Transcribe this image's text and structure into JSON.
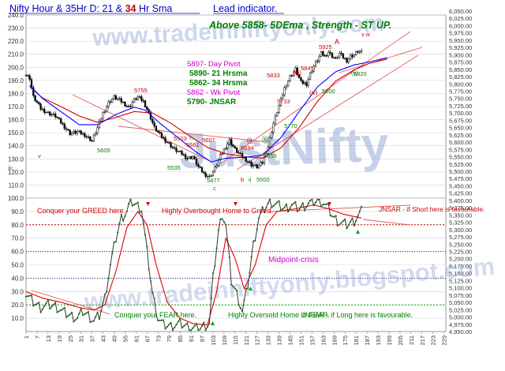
{
  "header": {
    "title_part1": "Nifty Hour & 35Hr D: 21 & ",
    "title_part2": "34",
    "title_part3": " Hr Sma",
    "lead": "Lead indicator.",
    "headline": "Above  5858-  5DEma ,  Strength - ST  UP."
  },
  "watermarks": {
    "url_top": "www.tradeinniftyonly.com",
    "brand": "JustNifty",
    "url_bottom": "www.tradeinniftyonly.blogspot.com"
  },
  "levels": {
    "day_pivot": "5897- Day Pivot",
    "hr21": "5890- 21 Hrsma",
    "hr34": "5862- 34 Hrsma",
    "wk_pivot": "5862 - Wk Pivot",
    "jnsar": "5790- JNSAR"
  },
  "colors": {
    "title": "#0000cc",
    "accent_red": "#cc0000",
    "headline": "#008000",
    "pivot": "#cc00cc",
    "price": "#000000",
    "ma21": "#0000ff",
    "ma34": "#d40000",
    "osc": "#2c2c2c",
    "signal": "#e00000",
    "watermark": "#8ea6d4"
  },
  "chart_data": [
    {
      "type": "candlestick",
      "title": "Nifty Hour & 35Hr D: 21 & 34 Hr Sma",
      "y_axis_left": {
        "ticks": [
          110,
          120,
          130,
          140,
          150,
          160,
          170,
          180,
          190,
          200,
          210,
          220,
          230,
          240
        ]
      },
      "y_axis_right": {
        "ticks": [
          "6,050.00",
          "6,025.00",
          "6,000.00",
          "5,975.00",
          "5,950.00",
          "5,925.00",
          "5,900.00",
          "5,875.00",
          "5,850.00",
          "5,825.00",
          "5,800.00",
          "5,775.00",
          "5,750.00",
          "5,725.00",
          "5,700.00",
          "5,675.00",
          "5,650.00",
          "5,625.00",
          "5,600.00",
          "5,575.00",
          "5,550.00",
          "5,525.00",
          "5,500.00",
          "5,475.00",
          "5,450.00",
          "5,425.00",
          "5,400.00",
          "5,375.00",
          "5,350.00",
          "5,325.00",
          "5,300.00",
          "5,275.00",
          "5,250.00",
          "5,225.00",
          "5,200.00",
          "5,175.00",
          "5,150.00",
          "5,125.00",
          "5,100.00",
          "5,075.00",
          "5,050.00",
          "5,025.00",
          "5,000.00",
          "4,975.00",
          "4,950.00"
        ],
        "range": [
          4950,
          6050
        ]
      },
      "x_axis": {
        "ticks": [
          "1",
          "7",
          "13",
          "19",
          "25",
          "31",
          "37",
          "43",
          "49",
          "55",
          "61",
          "67",
          "73",
          "79",
          "85",
          "91",
          "97",
          "103",
          "109",
          "115",
          "121",
          "127",
          "133",
          "139",
          "145",
          "151",
          "157",
          "163",
          "169",
          "175",
          "181",
          "187",
          "193",
          "199",
          "205",
          "211",
          "217",
          "223",
          "229"
        ],
        "range": [
          1,
          230
        ]
      },
      "series": [
        {
          "name": "Price",
          "anchors": [
            [
              1,
              5830
            ],
            [
              3,
              5820
            ],
            [
              5,
              5755
            ],
            [
              9,
              5715
            ],
            [
              13,
              5700
            ],
            [
              17,
              5690
            ],
            [
              21,
              5660
            ],
            [
              25,
              5630
            ],
            [
              29,
              5635
            ],
            [
              33,
              5625
            ],
            [
              37,
              5605
            ],
            [
              40,
              5650
            ],
            [
              43,
              5700
            ],
            [
              46,
              5735
            ],
            [
              49,
              5755
            ],
            [
              53,
              5740
            ],
            [
              57,
              5720
            ],
            [
              60,
              5745
            ],
            [
              62,
              5755
            ],
            [
              65,
              5740
            ],
            [
              68,
              5700
            ],
            [
              71,
              5650
            ],
            [
              74,
              5625
            ],
            [
              78,
              5600
            ],
            [
              82,
              5575
            ],
            [
              86,
              5560
            ],
            [
              89,
              5545
            ],
            [
              92,
              5550
            ],
            [
              95,
              5515
            ],
            [
              98,
              5492
            ],
            [
              101,
              5480
            ],
            [
              104,
              5510
            ],
            [
              107,
              5552
            ],
            [
              110,
              5585
            ],
            [
              112,
              5606
            ],
            [
              115,
              5575
            ],
            [
              118,
              5555
            ],
            [
              121,
              5540
            ],
            [
              124,
              5522
            ],
            [
              127,
              5515
            ],
            [
              130,
              5530
            ],
            [
              133,
              5585
            ],
            [
              136,
              5665
            ],
            [
              139,
              5725
            ],
            [
              142,
              5785
            ],
            [
              145,
              5825
            ],
            [
              148,
              5850
            ],
            [
              151,
              5805
            ],
            [
              154,
              5800
            ],
            [
              156,
              5835
            ],
            [
              158,
              5862
            ],
            [
              160,
              5882
            ],
            [
              162,
              5905
            ],
            [
              164,
              5895
            ],
            [
              166,
              5910
            ],
            [
              168,
              5895
            ],
            [
              170,
              5885
            ],
            [
              172,
              5905
            ],
            [
              174,
              5890
            ],
            [
              176,
              5880
            ],
            [
              178,
              5895
            ],
            [
              180,
              5900
            ],
            [
              182,
              5912
            ],
            [
              184,
              5908
            ]
          ]
        },
        {
          "name": "21 Hr Sma",
          "anchors": [
            [
              3,
              5795
            ],
            [
              10,
              5750
            ],
            [
              20,
              5705
            ],
            [
              30,
              5660
            ],
            [
              40,
              5660
            ],
            [
              50,
              5695
            ],
            [
              60,
              5720
            ],
            [
              66,
              5710
            ],
            [
              74,
              5665
            ],
            [
              84,
              5615
            ],
            [
              94,
              5565
            ],
            [
              102,
              5532
            ],
            [
              110,
              5545
            ],
            [
              120,
              5548
            ],
            [
              130,
              5555
            ],
            [
              140,
              5615
            ],
            [
              150,
              5705
            ],
            [
              160,
              5790
            ],
            [
              170,
              5842
            ],
            [
              180,
              5865
            ],
            [
              188,
              5875
            ],
            [
              198,
              5890
            ]
          ]
        },
        {
          "name": "34 Hr Sma",
          "anchors": [
            [
              3,
              5790
            ],
            [
              10,
              5752
            ],
            [
              20,
              5722
            ],
            [
              30,
              5690
            ],
            [
              40,
              5668
            ],
            [
              50,
              5685
            ],
            [
              60,
              5705
            ],
            [
              70,
              5700
            ],
            [
              80,
              5665
            ],
            [
              90,
              5622
            ],
            [
              100,
              5582
            ],
            [
              110,
              5560
            ],
            [
              120,
              5550
            ],
            [
              130,
              5545
            ],
            [
              140,
              5580
            ],
            [
              150,
              5650
            ],
            [
              160,
              5740
            ],
            [
              170,
              5810
            ],
            [
              180,
              5848
            ],
            [
              188,
              5870
            ],
            [
              198,
              5885
            ]
          ]
        }
      ],
      "annotations": [
        "5605",
        "5535",
        "5477",
        "5755",
        "5503",
        "5561",
        "5607",
        "5594",
        "5555",
        "5500",
        "5733",
        "5833",
        "5845",
        "5925",
        "5770",
        "5800",
        "5820",
        "iv",
        "iii",
        "v",
        "c",
        "b",
        "ii",
        "(i)",
        "(ii)",
        "(iii)",
        "(iv)",
        "(v)",
        "A",
        "v iii"
      ]
    },
    {
      "type": "line",
      "title": "",
      "y_axis_left": {
        "ticks": [
          10.0,
          20.0,
          30.0,
          40.0,
          50.0,
          60.0,
          70.0,
          80.0,
          90.0,
          100.0
        ],
        "range": [
          0,
          100
        ]
      },
      "series": [
        {
          "name": "Oscillator",
          "anchors": [
            [
              1,
              28
            ],
            [
              5,
              22
            ],
            [
              9,
              18
            ],
            [
              13,
              20
            ],
            [
              17,
              19
            ],
            [
              21,
              15
            ],
            [
              25,
              12
            ],
            [
              29,
              10
            ],
            [
              32,
              15
            ],
            [
              35,
              12
            ],
            [
              38,
              8
            ],
            [
              41,
              12
            ],
            [
              44,
              25
            ],
            [
              47,
              50
            ],
            [
              50,
              70
            ],
            [
              53,
              85
            ],
            [
              56,
              90
            ],
            [
              58,
              98
            ],
            [
              61,
              95
            ],
            [
              64,
              92
            ],
            [
              67,
              60
            ],
            [
              70,
              28
            ],
            [
              73,
              10
            ],
            [
              76,
              5
            ],
            [
              80,
              4
            ],
            [
              85,
              6
            ],
            [
              90,
              3
            ],
            [
              95,
              2
            ],
            [
              98,
              4
            ],
            [
              101,
              6
            ],
            [
              103,
              40
            ],
            [
              106,
              75
            ],
            [
              108,
              88
            ],
            [
              110,
              80
            ],
            [
              113,
              38
            ],
            [
              116,
              28
            ],
            [
              119,
              15
            ],
            [
              122,
              35
            ],
            [
              125,
              65
            ],
            [
              128,
              85
            ],
            [
              131,
              92
            ],
            [
              134,
              97
            ],
            [
              138,
              95
            ],
            [
              142,
              92
            ],
            [
              146,
              95
            ],
            [
              150,
              92
            ],
            [
              155,
              96
            ],
            [
              160,
              98
            ],
            [
              163,
              97
            ],
            [
              166,
              92
            ],
            [
              169,
              85
            ],
            [
              172,
              82
            ],
            [
              176,
              80
            ],
            [
              180,
              83
            ],
            [
              184,
              90
            ]
          ]
        },
        {
          "name": "Signal",
          "anchors": [
            [
              1,
              30
            ],
            [
              10,
              25
            ],
            [
              20,
              22
            ],
            [
              30,
              18
            ],
            [
              38,
              16
            ],
            [
              44,
              20
            ],
            [
              50,
              45
            ],
            [
              56,
              78
            ],
            [
              62,
              90
            ],
            [
              67,
              80
            ],
            [
              72,
              50
            ],
            [
              78,
              22
            ],
            [
              85,
              10
            ],
            [
              92,
              6
            ],
            [
              100,
              5
            ],
            [
              105,
              30
            ],
            [
              110,
              70
            ],
            [
              115,
              55
            ],
            [
              120,
              32
            ],
            [
              126,
              50
            ],
            [
              132,
              80
            ],
            [
              138,
              90
            ],
            [
              148,
              92
            ],
            [
              158,
              95
            ],
            [
              166,
              92
            ],
            [
              174,
              88
            ],
            [
              184,
              85
            ]
          ]
        }
      ],
      "reference_lines": [
        80,
        20
      ],
      "annotations": [
        "Conquer your GREED here.",
        "Highly Overbought Home to Greed.",
        "JNSAR - if Short here is favourable.",
        "Midpoint-crisis",
        "Conquer your FEAR here.",
        "Highly Oversold Home to FEAR.",
        "JNSAR - if Long here is favourable."
      ]
    }
  ]
}
